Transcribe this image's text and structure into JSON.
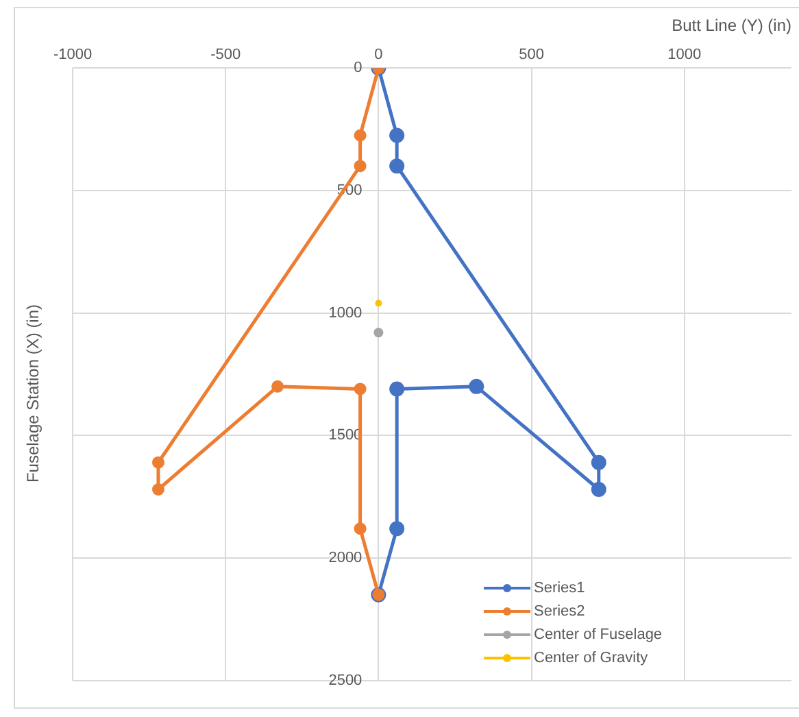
{
  "chart_data": {
    "type": "line",
    "xlabel": "Butt Line (Y) (in)",
    "ylabel": "Fuselage Station (X) (in)",
    "xlim": [
      -1000,
      1350
    ],
    "xticks": [
      -1000,
      -500,
      0,
      500,
      1000
    ],
    "ylim": [
      2500,
      0
    ],
    "yticks": [
      0,
      500,
      1000,
      1500,
      2000,
      2500
    ],
    "grid": true,
    "legend": "bottom right",
    "marker": "circle",
    "line_style": "solid",
    "series": [
      {
        "name": "Series1",
        "color": "#4472c4",
        "x": [
          0,
          60,
          60,
          720,
          720,
          320,
          60,
          60,
          0
        ],
        "values": [
          0,
          275,
          400,
          1610,
          1720,
          1300,
          1310,
          1880,
          2150
        ]
      },
      {
        "name": "Series2",
        "color": "#ed7d31",
        "x": [
          0,
          -60,
          -60,
          -720,
          -720,
          -330,
          -60,
          -60,
          0
        ],
        "values": [
          0,
          275,
          400,
          1610,
          1720,
          1300,
          1310,
          1880,
          2150
        ]
      },
      {
        "name": "Center of Fuselage",
        "color": "#a5a5a5",
        "x": [
          0
        ],
        "values": [
          1080
        ]
      },
      {
        "name": "Center of Gravity",
        "color": "#ffc000",
        "x": [
          0
        ],
        "values": [
          960
        ]
      }
    ]
  }
}
